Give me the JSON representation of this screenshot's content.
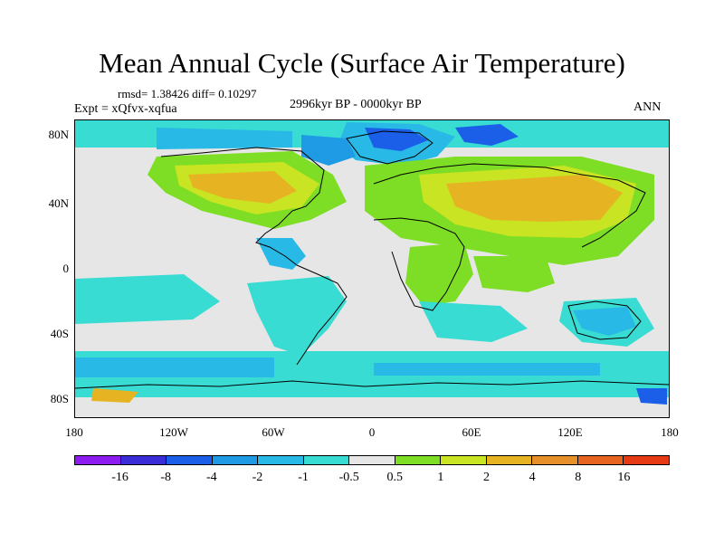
{
  "title": "Mean Annual Cycle (Surface Air Temperature)",
  "stats": "rmsd= 1.38426 diff= 0.10297",
  "experiment": "Expt = xQfvx-xqfua",
  "period": "2996kyr BP - 0000kyr BP",
  "season": "ANN",
  "axes": {
    "y_labels": [
      "80N",
      "40N",
      "0",
      "40S",
      "80S"
    ],
    "x_labels": [
      "180",
      "120W",
      "60W",
      "0",
      "60E",
      "120E",
      "180"
    ]
  },
  "colorbar": {
    "labels": [
      "-16",
      "-8",
      "-4",
      "-2",
      "-1",
      "-0.5",
      "0.5",
      "1",
      "2",
      "4",
      "8",
      "16"
    ],
    "colors": [
      "#8c1cf0",
      "#3a2cd6",
      "#1b5fe8",
      "#1f9be6",
      "#29b9e6",
      "#39dcd2",
      "#e6e6e6",
      "#7ede25",
      "#c8e422",
      "#e6b422",
      "#e6902a",
      "#e6641f",
      "#e63a14"
    ]
  },
  "colors": {
    "neutral": "#e6e6e6",
    "warm_1": "#7ede25",
    "warm_2": "#c8e422",
    "warm_3": "#e6b422",
    "cool_1": "#39dcd2",
    "cool_2": "#29b9e6",
    "cool_3": "#1f9be6",
    "cool_4": "#1b5fe8",
    "cool_5": "#3a2cd6"
  }
}
